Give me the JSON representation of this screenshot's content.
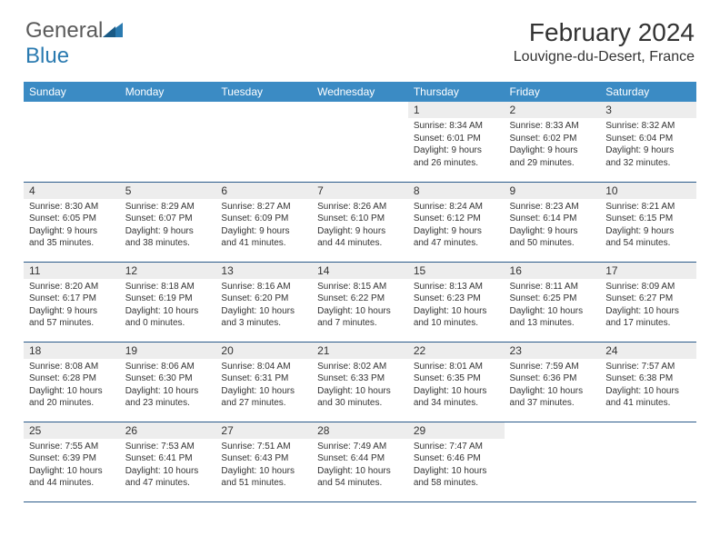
{
  "brand": {
    "part1": "General",
    "part2": "Blue"
  },
  "title": "February 2024",
  "location": "Louvigne-du-Desert, France",
  "style": {
    "header_bg": "#3b8bc4",
    "header_text": "#ffffff",
    "daynum_bg": "#ededed",
    "border_color": "#2a5a8a",
    "logo_gray": "#5a5a5a",
    "logo_blue": "#2a7ab0",
    "body_text": "#333333",
    "page_bg": "#ffffff",
    "month_title_fontsize": 28,
    "location_fontsize": 16,
    "dayheader_fontsize": 12,
    "cell_fontsize": 10
  },
  "dayHeaders": [
    "Sunday",
    "Monday",
    "Tuesday",
    "Wednesday",
    "Thursday",
    "Friday",
    "Saturday"
  ],
  "weeks": [
    [
      null,
      null,
      null,
      null,
      {
        "n": "1",
        "sr": "8:34 AM",
        "ss": "6:01 PM",
        "dl": "9 hours and 26 minutes."
      },
      {
        "n": "2",
        "sr": "8:33 AM",
        "ss": "6:02 PM",
        "dl": "9 hours and 29 minutes."
      },
      {
        "n": "3",
        "sr": "8:32 AM",
        "ss": "6:04 PM",
        "dl": "9 hours and 32 minutes."
      }
    ],
    [
      {
        "n": "4",
        "sr": "8:30 AM",
        "ss": "6:05 PM",
        "dl": "9 hours and 35 minutes."
      },
      {
        "n": "5",
        "sr": "8:29 AM",
        "ss": "6:07 PM",
        "dl": "9 hours and 38 minutes."
      },
      {
        "n": "6",
        "sr": "8:27 AM",
        "ss": "6:09 PM",
        "dl": "9 hours and 41 minutes."
      },
      {
        "n": "7",
        "sr": "8:26 AM",
        "ss": "6:10 PM",
        "dl": "9 hours and 44 minutes."
      },
      {
        "n": "8",
        "sr": "8:24 AM",
        "ss": "6:12 PM",
        "dl": "9 hours and 47 minutes."
      },
      {
        "n": "9",
        "sr": "8:23 AM",
        "ss": "6:14 PM",
        "dl": "9 hours and 50 minutes."
      },
      {
        "n": "10",
        "sr": "8:21 AM",
        "ss": "6:15 PM",
        "dl": "9 hours and 54 minutes."
      }
    ],
    [
      {
        "n": "11",
        "sr": "8:20 AM",
        "ss": "6:17 PM",
        "dl": "9 hours and 57 minutes."
      },
      {
        "n": "12",
        "sr": "8:18 AM",
        "ss": "6:19 PM",
        "dl": "10 hours and 0 minutes."
      },
      {
        "n": "13",
        "sr": "8:16 AM",
        "ss": "6:20 PM",
        "dl": "10 hours and 3 minutes."
      },
      {
        "n": "14",
        "sr": "8:15 AM",
        "ss": "6:22 PM",
        "dl": "10 hours and 7 minutes."
      },
      {
        "n": "15",
        "sr": "8:13 AM",
        "ss": "6:23 PM",
        "dl": "10 hours and 10 minutes."
      },
      {
        "n": "16",
        "sr": "8:11 AM",
        "ss": "6:25 PM",
        "dl": "10 hours and 13 minutes."
      },
      {
        "n": "17",
        "sr": "8:09 AM",
        "ss": "6:27 PM",
        "dl": "10 hours and 17 minutes."
      }
    ],
    [
      {
        "n": "18",
        "sr": "8:08 AM",
        "ss": "6:28 PM",
        "dl": "10 hours and 20 minutes."
      },
      {
        "n": "19",
        "sr": "8:06 AM",
        "ss": "6:30 PM",
        "dl": "10 hours and 23 minutes."
      },
      {
        "n": "20",
        "sr": "8:04 AM",
        "ss": "6:31 PM",
        "dl": "10 hours and 27 minutes."
      },
      {
        "n": "21",
        "sr": "8:02 AM",
        "ss": "6:33 PM",
        "dl": "10 hours and 30 minutes."
      },
      {
        "n": "22",
        "sr": "8:01 AM",
        "ss": "6:35 PM",
        "dl": "10 hours and 34 minutes."
      },
      {
        "n": "23",
        "sr": "7:59 AM",
        "ss": "6:36 PM",
        "dl": "10 hours and 37 minutes."
      },
      {
        "n": "24",
        "sr": "7:57 AM",
        "ss": "6:38 PM",
        "dl": "10 hours and 41 minutes."
      }
    ],
    [
      {
        "n": "25",
        "sr": "7:55 AM",
        "ss": "6:39 PM",
        "dl": "10 hours and 44 minutes."
      },
      {
        "n": "26",
        "sr": "7:53 AM",
        "ss": "6:41 PM",
        "dl": "10 hours and 47 minutes."
      },
      {
        "n": "27",
        "sr": "7:51 AM",
        "ss": "6:43 PM",
        "dl": "10 hours and 51 minutes."
      },
      {
        "n": "28",
        "sr": "7:49 AM",
        "ss": "6:44 PM",
        "dl": "10 hours and 54 minutes."
      },
      {
        "n": "29",
        "sr": "7:47 AM",
        "ss": "6:46 PM",
        "dl": "10 hours and 58 minutes."
      },
      null,
      null
    ]
  ],
  "labels": {
    "sunrise": "Sunrise: ",
    "sunset": "Sunset: ",
    "daylight": "Daylight: "
  }
}
